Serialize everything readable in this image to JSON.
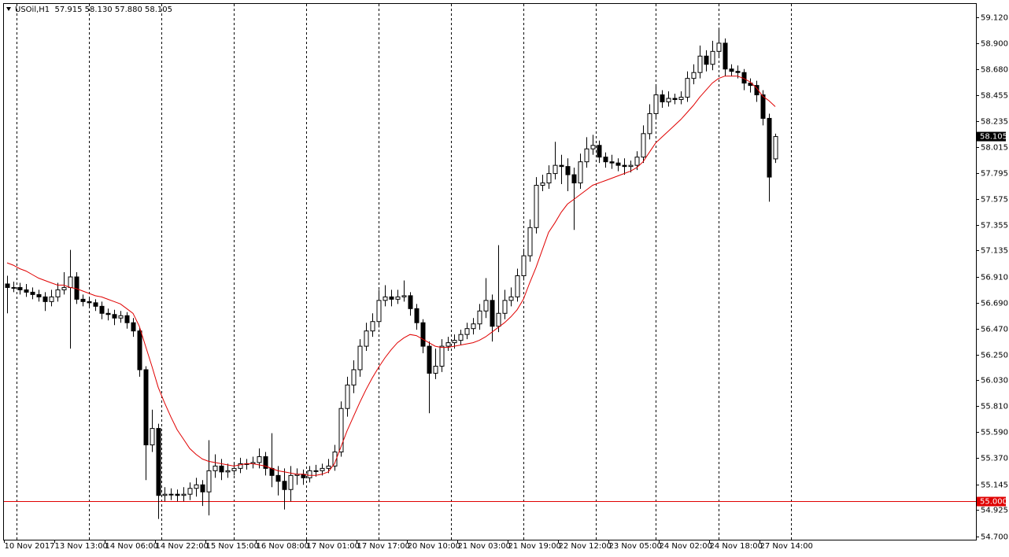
{
  "chart_data": {
    "type": "candlestick",
    "header": "USOil,H1  57.915 58.130 57.880 58.105",
    "categories": [
      "10 Nov 2017",
      null,
      null,
      null,
      null,
      null,
      null,
      null,
      "13 Nov 13:00",
      null,
      null,
      null,
      null,
      null,
      null,
      null,
      "14 Nov 06:00",
      null,
      null,
      null,
      null,
      null,
      null,
      null,
      "14 Nov 22:00",
      null,
      null,
      null,
      null,
      null,
      null,
      null,
      "15 Nov 15:00",
      null,
      null,
      null,
      null,
      null,
      null,
      null,
      "16 Nov 08:00",
      null,
      null,
      null,
      null,
      null,
      null,
      null,
      "17 Nov 01:00",
      null,
      null,
      null,
      null,
      null,
      null,
      null,
      "17 Nov 17:00",
      null,
      null,
      null,
      null,
      null,
      null,
      null,
      "20 Nov 10:00",
      null,
      null,
      null,
      null,
      null,
      null,
      null,
      "21 Nov 03:00",
      null,
      null,
      null,
      null,
      null,
      null,
      null,
      "21 Nov 19:00",
      null,
      null,
      null,
      null,
      null,
      null,
      null,
      "22 Nov 12:00",
      null,
      null,
      null,
      null,
      null,
      null,
      null,
      "23 Nov 05:00",
      null,
      null,
      null,
      null,
      null,
      null,
      null,
      "24 Nov 02:00",
      null,
      null,
      null,
      null,
      null,
      null,
      null,
      "24 Nov 18:00",
      null,
      null,
      null,
      null,
      null,
      null,
      null,
      "27 Nov 14:00",
      null,
      null
    ],
    "open": [
      56.85,
      56.82,
      56.82,
      56.8,
      56.78,
      56.76,
      56.74,
      56.7,
      56.74,
      56.8,
      56.82,
      56.91,
      56.72,
      56.7,
      56.69,
      56.66,
      56.6,
      56.59,
      56.56,
      56.58,
      56.52,
      56.45,
      56.12,
      55.48,
      55.62,
      55.05,
      55.06,
      55.06,
      55.05,
      55.06,
      55.11,
      55.14,
      55.08,
      55.26,
      55.3,
      55.25,
      55.26,
      55.28,
      55.32,
      55.32,
      55.33,
      55.38,
      55.28,
      55.22,
      55.17,
      55.1,
      55.22,
      55.23,
      55.2,
      55.26,
      55.26,
      55.28,
      55.3,
      55.42,
      55.79,
      55.99,
      56.12,
      56.32,
      56.45,
      56.53,
      56.71,
      56.74,
      56.72,
      56.74,
      56.75,
      56.64,
      56.52,
      56.32,
      56.09,
      56.15,
      56.32,
      56.35,
      56.37,
      56.42,
      56.47,
      56.51,
      56.62,
      56.71,
      56.49,
      56.6,
      56.71,
      56.74,
      56.92,
      57.09,
      57.33,
      57.69,
      57.71,
      57.79,
      57.86,
      57.85,
      57.78,
      57.71,
      57.89,
      58.0,
      58.03,
      57.93,
      57.89,
      57.88,
      57.86,
      57.85,
      57.86,
      57.93,
      58.13,
      58.3,
      58.46,
      58.4,
      58.43,
      58.42,
      58.44,
      58.6,
      58.65,
      58.79,
      58.72,
      58.83,
      58.9,
      58.68,
      58.66,
      58.65,
      58.56,
      58.54,
      58.46,
      58.26,
      57.915
    ],
    "high": [
      56.92,
      56.87,
      56.86,
      56.85,
      56.82,
      56.8,
      56.78,
      56.8,
      56.86,
      56.95,
      57.14,
      56.95,
      56.76,
      56.74,
      56.72,
      56.7,
      56.64,
      56.63,
      56.62,
      56.61,
      56.56,
      56.48,
      56.15,
      55.78,
      55.66,
      55.12,
      55.11,
      55.1,
      55.12,
      55.16,
      55.2,
      55.18,
      55.52,
      55.4,
      55.36,
      55.32,
      55.33,
      55.37,
      55.36,
      55.38,
      55.45,
      55.42,
      55.58,
      55.3,
      55.28,
      55.3,
      55.28,
      55.27,
      55.3,
      55.31,
      55.32,
      55.36,
      55.48,
      55.85,
      56.06,
      56.2,
      56.38,
      56.52,
      56.6,
      56.8,
      56.84,
      56.8,
      56.8,
      56.88,
      56.78,
      56.68,
      56.55,
      56.36,
      56.3,
      56.38,
      56.4,
      56.42,
      56.46,
      56.52,
      56.56,
      56.68,
      56.9,
      56.76,
      57.18,
      56.8,
      56.82,
      56.98,
      57.15,
      57.4,
      57.76,
      57.78,
      57.86,
      58.06,
      57.95,
      57.92,
      57.84,
      57.96,
      58.1,
      58.12,
      58.07,
      57.97,
      57.95,
      57.92,
      57.92,
      57.9,
      57.98,
      58.2,
      58.38,
      58.55,
      58.5,
      58.49,
      58.47,
      58.49,
      58.66,
      58.72,
      58.88,
      58.84,
      58.92,
      59.02,
      58.94,
      58.72,
      58.71,
      58.68,
      58.6,
      58.58,
      58.5,
      58.3,
      58.13
    ],
    "low": [
      56.6,
      56.78,
      56.76,
      56.74,
      56.72,
      56.7,
      56.62,
      56.66,
      56.7,
      56.76,
      56.3,
      56.68,
      56.66,
      56.65,
      56.62,
      56.55,
      56.54,
      56.5,
      56.52,
      56.47,
      56.4,
      56.06,
      55.18,
      55.42,
      54.85,
      55.0,
      55.01,
      55.0,
      55.0,
      55.01,
      55.04,
      54.96,
      54.88,
      55.2,
      55.18,
      55.2,
      55.22,
      55.24,
      55.27,
      55.28,
      55.28,
      55.22,
      55.12,
      55.05,
      54.93,
      55.0,
      55.14,
      55.14,
      55.16,
      55.21,
      55.22,
      55.24,
      55.26,
      55.38,
      55.72,
      55.92,
      56.06,
      56.28,
      56.4,
      56.48,
      56.66,
      56.66,
      56.68,
      56.7,
      56.58,
      56.46,
      56.26,
      55.75,
      56.04,
      56.1,
      56.28,
      56.3,
      56.33,
      56.38,
      56.42,
      56.46,
      56.56,
      56.36,
      56.44,
      56.55,
      56.66,
      56.7,
      56.88,
      57.04,
      57.28,
      57.64,
      57.66,
      57.74,
      57.7,
      57.64,
      57.31,
      57.66,
      57.84,
      57.95,
      57.88,
      57.84,
      57.83,
      57.81,
      57.78,
      57.8,
      57.82,
      57.88,
      58.08,
      58.25,
      58.35,
      58.36,
      58.38,
      58.38,
      58.4,
      58.55,
      58.6,
      58.66,
      58.67,
      58.78,
      58.62,
      58.62,
      58.6,
      58.5,
      58.48,
      58.4,
      58.2,
      57.55,
      57.88
    ],
    "close": [
      56.82,
      56.82,
      56.8,
      56.78,
      56.76,
      56.74,
      56.7,
      56.74,
      56.8,
      56.82,
      56.91,
      56.72,
      56.7,
      56.69,
      56.66,
      56.6,
      56.59,
      56.56,
      56.58,
      56.52,
      56.45,
      56.12,
      55.48,
      55.62,
      55.05,
      55.06,
      55.06,
      55.05,
      55.06,
      55.11,
      55.14,
      55.08,
      55.26,
      55.3,
      55.25,
      55.26,
      55.28,
      55.32,
      55.32,
      55.33,
      55.38,
      55.28,
      55.22,
      55.17,
      55.1,
      55.22,
      55.23,
      55.2,
      55.26,
      55.26,
      55.28,
      55.3,
      55.42,
      55.79,
      55.99,
      56.12,
      56.32,
      56.45,
      56.53,
      56.71,
      56.74,
      56.72,
      56.74,
      56.75,
      56.64,
      56.52,
      56.32,
      56.09,
      56.15,
      56.32,
      56.35,
      56.37,
      56.42,
      56.47,
      56.51,
      56.62,
      56.71,
      56.49,
      56.6,
      56.71,
      56.74,
      56.92,
      57.09,
      57.33,
      57.69,
      57.71,
      57.79,
      57.86,
      57.85,
      57.78,
      57.71,
      57.89,
      58.0,
      58.03,
      57.93,
      57.89,
      57.88,
      57.86,
      57.85,
      57.86,
      57.93,
      58.13,
      58.3,
      58.46,
      58.4,
      58.43,
      58.42,
      58.44,
      58.6,
      58.65,
      58.79,
      58.72,
      58.83,
      58.9,
      58.68,
      58.66,
      58.65,
      58.56,
      58.54,
      58.46,
      58.26,
      57.76,
      58.105
    ],
    "ma": {
      "color": "#e00000",
      "values": [
        57.03,
        57.01,
        56.98,
        56.96,
        56.93,
        56.9,
        56.88,
        56.86,
        56.84,
        56.84,
        56.82,
        56.81,
        56.79,
        56.77,
        56.75,
        56.74,
        56.72,
        56.7,
        56.68,
        56.64,
        56.6,
        56.49,
        56.32,
        56.15,
        55.97,
        55.84,
        55.72,
        55.61,
        55.53,
        55.45,
        55.4,
        55.36,
        55.34,
        55.33,
        55.32,
        55.31,
        55.3,
        55.31,
        55.32,
        55.32,
        55.31,
        55.3,
        55.28,
        55.26,
        55.25,
        55.24,
        55.23,
        55.23,
        55.22,
        55.22,
        55.23,
        55.25,
        55.32,
        55.46,
        55.6,
        55.72,
        55.84,
        55.95,
        56.05,
        56.14,
        56.22,
        56.29,
        56.35,
        56.39,
        56.42,
        56.41,
        56.38,
        56.35,
        56.32,
        56.31,
        56.31,
        56.32,
        56.33,
        56.34,
        56.35,
        56.37,
        56.4,
        56.44,
        56.48,
        56.52,
        56.57,
        56.63,
        56.72,
        56.86,
        56.99,
        57.14,
        57.29,
        57.37,
        57.46,
        57.53,
        57.57,
        57.61,
        57.65,
        57.69,
        57.71,
        57.73,
        57.75,
        57.77,
        57.79,
        57.81,
        57.84,
        57.89,
        57.97,
        58.05,
        58.1,
        58.15,
        58.2,
        58.25,
        58.31,
        58.37,
        58.44,
        58.5,
        58.56,
        58.6,
        58.62,
        58.62,
        58.62,
        58.6,
        58.57,
        58.52,
        58.45,
        58.41,
        58.36
      ]
    },
    "hline": {
      "value": 55,
      "label": "55.000",
      "color": "#e00000"
    },
    "last_price": {
      "value": 58.105,
      "label": "58.105"
    },
    "up_color": "#ffffff",
    "down_color": "#000000",
    "ylim": [
      54.673,
      59.234
    ],
    "yticks": [
      {
        "value": 59.12,
        "label": "59.120"
      },
      {
        "value": 58.9,
        "label": "58.900"
      },
      {
        "value": 58.68,
        "label": "58.680"
      },
      {
        "value": 58.455,
        "label": "58.455"
      },
      {
        "value": 58.235,
        "label": "58.235"
      },
      {
        "value": 58.015,
        "label": "58.015"
      },
      {
        "value": 57.795,
        "label": "57.795"
      },
      {
        "value": 57.575,
        "label": "57.575"
      },
      {
        "value": 57.355,
        "label": "57.355"
      },
      {
        "value": 57.135,
        "label": "57.135"
      },
      {
        "value": 56.91,
        "label": "56.910"
      },
      {
        "value": 56.69,
        "label": "56.690"
      },
      {
        "value": 56.47,
        "label": "56.470"
      },
      {
        "value": 56.25,
        "label": "56.250"
      },
      {
        "value": 56.03,
        "label": "56.030"
      },
      {
        "value": 55.81,
        "label": "55.810"
      },
      {
        "value": 55.59,
        "label": "55.590"
      },
      {
        "value": 55.37,
        "label": "55.370"
      },
      {
        "value": 55.145,
        "label": "55.145"
      },
      {
        "value": 54.925,
        "label": "54.925"
      },
      {
        "value": 54.7,
        "label": "54.700"
      }
    ]
  }
}
